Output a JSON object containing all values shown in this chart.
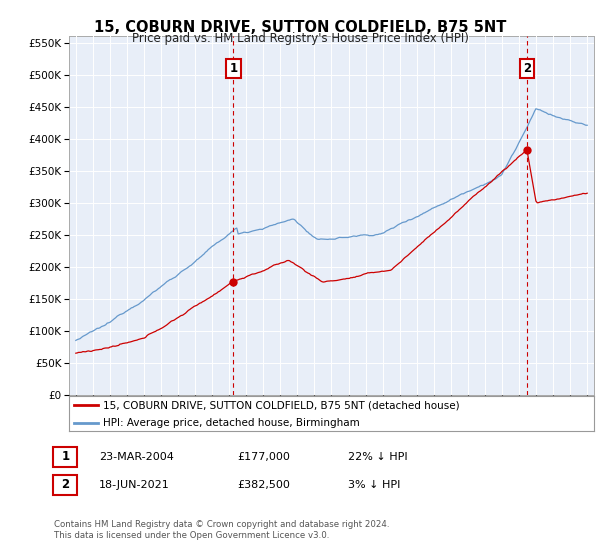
{
  "title": "15, COBURN DRIVE, SUTTON COLDFIELD, B75 5NT",
  "subtitle": "Price paid vs. HM Land Registry's House Price Index (HPI)",
  "legend_label_red": "15, COBURN DRIVE, SUTTON COLDFIELD, B75 5NT (detached house)",
  "legend_label_blue": "HPI: Average price, detached house, Birmingham",
  "sale1_label": "1",
  "sale1_date": "23-MAR-2004",
  "sale1_price": "£177,000",
  "sale1_hpi": "22% ↓ HPI",
  "sale1_year": 2004.25,
  "sale1_value": 177000,
  "sale2_label": "2",
  "sale2_date": "18-JUN-2021",
  "sale2_price": "£382,500",
  "sale2_hpi": "3% ↓ HPI",
  "sale2_year": 2021.46,
  "sale2_value": 382500,
  "footer": "Contains HM Land Registry data © Crown copyright and database right 2024.\nThis data is licensed under the Open Government Licence v3.0.",
  "ylim_bottom": 0,
  "ylim_top": 560000,
  "yticks": [
    0,
    50000,
    100000,
    150000,
    200000,
    250000,
    300000,
    350000,
    400000,
    450000,
    500000,
    550000
  ],
  "ytick_labels": [
    "£0",
    "£50K",
    "£100K",
    "£150K",
    "£200K",
    "£250K",
    "£300K",
    "£350K",
    "£400K",
    "£450K",
    "£500K",
    "£550K"
  ],
  "xlim_left": 1994.6,
  "xlim_right": 2025.4,
  "xticks": [
    1995,
    1996,
    1997,
    1998,
    1999,
    2000,
    2001,
    2002,
    2003,
    2004,
    2005,
    2006,
    2007,
    2008,
    2009,
    2010,
    2011,
    2012,
    2013,
    2014,
    2015,
    2016,
    2017,
    2018,
    2019,
    2020,
    2021,
    2022,
    2023,
    2024,
    2025
  ],
  "red_color": "#cc0000",
  "blue_color": "#6699cc",
  "bg_color": "#ffffff",
  "plot_bg_color": "#e8eef8",
  "grid_color": "#ffffff"
}
